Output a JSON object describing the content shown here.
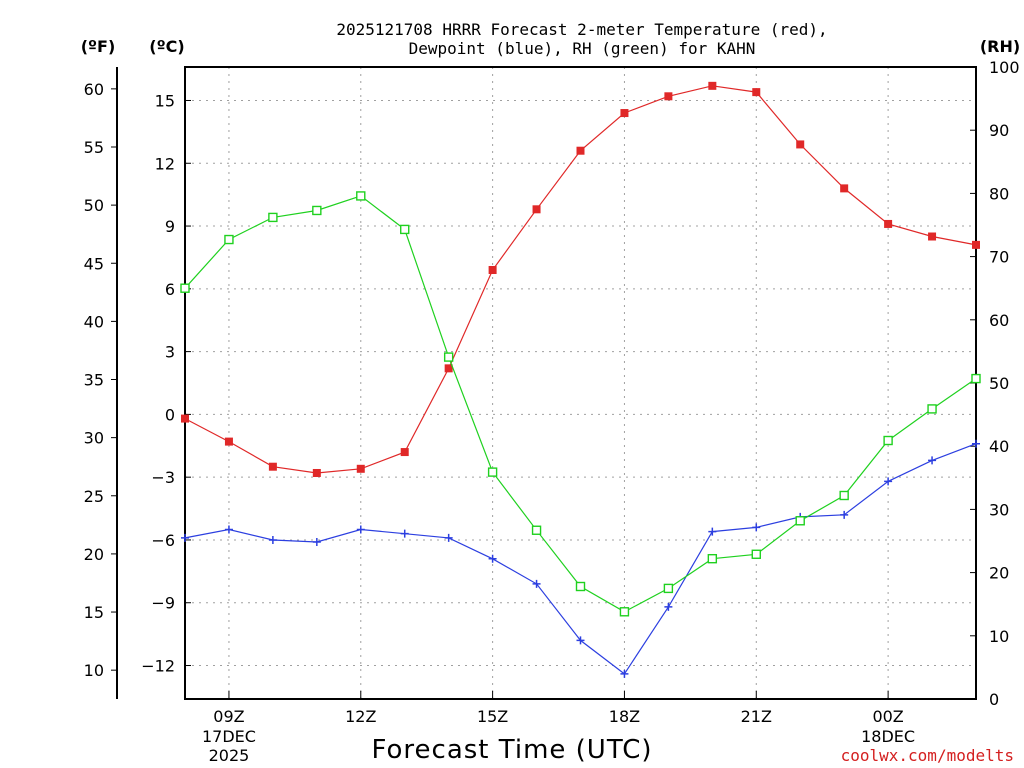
{
  "chart_data": {
    "type": "line",
    "title_lines": [
      "2025121708 HRRR Forecast 2-meter Temperature (red),",
      "Dewpoint (blue), RH (green) for KAHN"
    ],
    "xlabel": "Forecast Time (UTC)",
    "credit": "coolwx.com/modelts",
    "x_hours": [
      8,
      9,
      10,
      11,
      12,
      13,
      14,
      15,
      16,
      17,
      18,
      19,
      20,
      21,
      22,
      23,
      24,
      25,
      26
    ],
    "xlim": [
      8,
      26
    ],
    "x_ticks": [
      {
        "hour": 9,
        "label": "09Z",
        "sub1": "17DEC",
        "sub2": "2025"
      },
      {
        "hour": 12,
        "label": "12Z",
        "sub1": "",
        "sub2": ""
      },
      {
        "hour": 15,
        "label": "15Z",
        "sub1": "",
        "sub2": ""
      },
      {
        "hour": 18,
        "label": "18Z",
        "sub1": "",
        "sub2": ""
      },
      {
        "hour": 21,
        "label": "21Z",
        "sub1": "",
        "sub2": ""
      },
      {
        "hour": 24,
        "label": "00Z",
        "sub1": "18DEC",
        "sub2": ""
      }
    ],
    "axis_units": {
      "f": "(ºF)",
      "c": "(ºC)",
      "rh": "(RH)"
    },
    "ylim_c": [
      -13.6,
      16.6
    ],
    "ylim_rh": [
      0,
      100
    ],
    "f_ticks": [
      "60",
      "55",
      "50",
      "45",
      "40",
      "35",
      "30",
      "25",
      "20",
      "15",
      "10"
    ],
    "c_ticks": [
      "15",
      "12",
      "9",
      "6",
      "3",
      "0",
      "−3",
      "−6",
      "−9",
      "−12"
    ],
    "rh_ticks": [
      "100",
      "90",
      "80",
      "70",
      "60",
      "50",
      "40",
      "30",
      "20",
      "10",
      "0"
    ],
    "series": [
      {
        "name": "Temperature",
        "unit": "C",
        "color": "#e02828",
        "marker": "filled-square",
        "values": [
          -0.2,
          -1.3,
          -2.5,
          -2.8,
          -2.6,
          -1.8,
          2.2,
          6.9,
          9.8,
          12.6,
          14.4,
          15.2,
          15.7,
          15.4,
          12.9,
          10.8,
          9.1,
          8.5,
          8.1
        ]
      },
      {
        "name": "Dewpoint",
        "unit": "C",
        "color": "#2c3fe0",
        "marker": "plus",
        "values": [
          -5.9,
          -5.5,
          -6.0,
          -6.1,
          -5.5,
          -5.7,
          -5.9,
          -6.9,
          -8.1,
          -10.8,
          -12.4,
          -9.2,
          -5.6,
          -5.4,
          -4.9,
          -4.8,
          -3.2,
          -2.2,
          -1.4
        ]
      },
      {
        "name": "RH",
        "unit": "%",
        "color": "#1fd11f",
        "marker": "open-square",
        "values": [
          65.0,
          72.7,
          76.2,
          77.3,
          79.6,
          74.3,
          54.1,
          35.9,
          26.7,
          17.8,
          13.8,
          17.5,
          22.2,
          22.9,
          28.2,
          32.2,
          40.9,
          45.9,
          50.7
        ]
      }
    ]
  }
}
